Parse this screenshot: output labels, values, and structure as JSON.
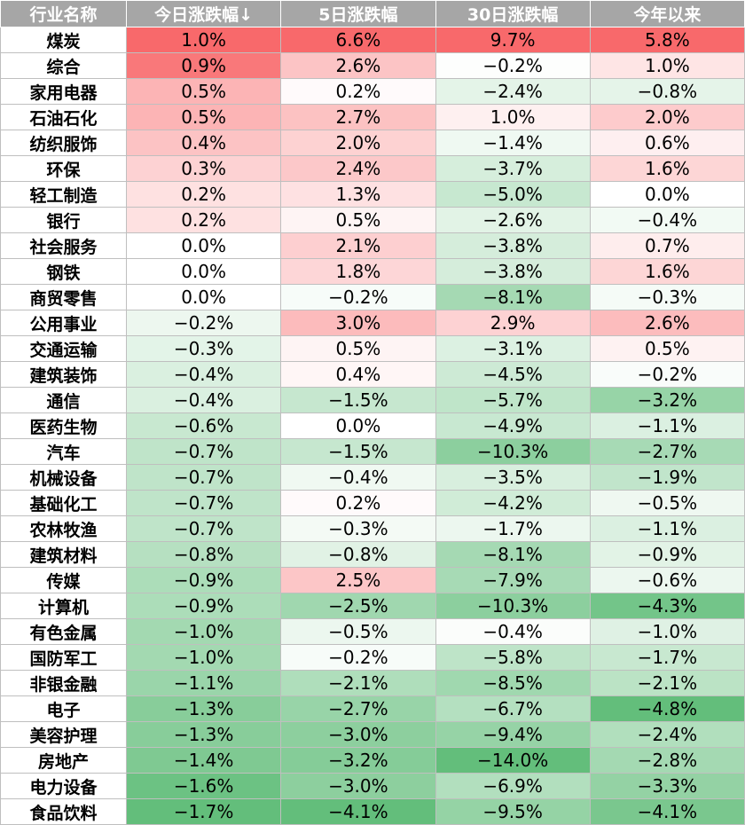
{
  "chart_data": {
    "type": "table",
    "columns": [
      "行业名称",
      "今日涨跌幅↓",
      "5日涨跌幅",
      "30日涨跌幅",
      "今年以来"
    ],
    "rows": [
      [
        "煤炭",
        "1.0%",
        "6.6%",
        "9.7%",
        "5.8%"
      ],
      [
        "综合",
        "0.9%",
        "2.6%",
        "−0.2%",
        "1.0%"
      ],
      [
        "家用电器",
        "0.5%",
        "0.2%",
        "−2.4%",
        "−0.8%"
      ],
      [
        "石油石化",
        "0.5%",
        "2.7%",
        "1.0%",
        "2.0%"
      ],
      [
        "纺织服饰",
        "0.4%",
        "2.0%",
        "−1.4%",
        "0.6%"
      ],
      [
        "环保",
        "0.3%",
        "2.4%",
        "−3.7%",
        "1.6%"
      ],
      [
        "轻工制造",
        "0.2%",
        "1.3%",
        "−5.0%",
        "0.0%"
      ],
      [
        "银行",
        "0.2%",
        "0.5%",
        "−2.6%",
        "−0.4%"
      ],
      [
        "社会服务",
        "0.0%",
        "2.1%",
        "−3.8%",
        "0.7%"
      ],
      [
        "钢铁",
        "0.0%",
        "1.8%",
        "−3.8%",
        "1.6%"
      ],
      [
        "商贸零售",
        "0.0%",
        "−0.2%",
        "−8.1%",
        "−0.3%"
      ],
      [
        "公用事业",
        "−0.2%",
        "3.0%",
        "2.9%",
        "2.6%"
      ],
      [
        "交通运输",
        "−0.3%",
        "0.5%",
        "−3.1%",
        "0.5%"
      ],
      [
        "建筑装饰",
        "−0.4%",
        "0.4%",
        "−4.5%",
        "−0.2%"
      ],
      [
        "通信",
        "−0.4%",
        "−1.5%",
        "−5.7%",
        "−3.2%"
      ],
      [
        "医药生物",
        "−0.6%",
        "0.0%",
        "−4.9%",
        "−1.1%"
      ],
      [
        "汽车",
        "−0.7%",
        "−1.5%",
        "−10.3%",
        "−2.7%"
      ],
      [
        "机械设备",
        "−0.7%",
        "−0.4%",
        "−3.5%",
        "−1.9%"
      ],
      [
        "基础化工",
        "−0.7%",
        "0.2%",
        "−4.2%",
        "−0.5%"
      ],
      [
        "农林牧渔",
        "−0.7%",
        "−0.3%",
        "−1.7%",
        "−1.1%"
      ],
      [
        "建筑材料",
        "−0.8%",
        "−0.8%",
        "−8.1%",
        "−0.9%"
      ],
      [
        "传媒",
        "−0.9%",
        "2.5%",
        "−7.9%",
        "−0.6%"
      ],
      [
        "计算机",
        "−0.9%",
        "−2.5%",
        "−10.3%",
        "−4.3%"
      ],
      [
        "有色金属",
        "−1.0%",
        "−0.5%",
        "−0.4%",
        "−1.0%"
      ],
      [
        "国防军工",
        "−1.0%",
        "−0.2%",
        "−5.8%",
        "−1.7%"
      ],
      [
        "非银金融",
        "−1.1%",
        "−2.1%",
        "−8.5%",
        "−2.1%"
      ],
      [
        "电子",
        "−1.3%",
        "−2.7%",
        "−6.7%",
        "−4.8%"
      ],
      [
        "美容护理",
        "−1.3%",
        "−3.0%",
        "−9.4%",
        "−2.4%"
      ],
      [
        "房地产",
        "−1.4%",
        "−3.2%",
        "−14.0%",
        "−2.8%"
      ],
      [
        "电力设备",
        "−1.6%",
        "−3.0%",
        "−6.9%",
        "−3.3%"
      ],
      [
        "食品饮料",
        "−1.7%",
        "−4.1%",
        "−9.5%",
        "−4.1%"
      ]
    ],
    "colors": {
      "header_bg": "#a6a6a6",
      "header_text": "#ffffff",
      "positive_max": "#f8696b",
      "neutral": "#ffffff",
      "negative_max": "#63be7b"
    }
  }
}
